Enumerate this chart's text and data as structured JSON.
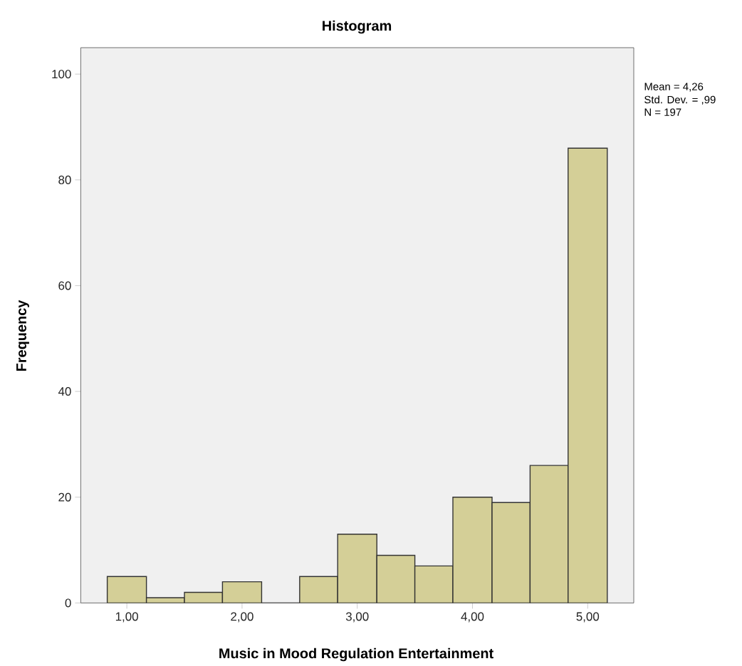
{
  "chart_data": {
    "type": "histogram",
    "title": "Histogram",
    "xlabel": "Music in Mood Regulation Entertainment",
    "ylabel": "Frequency",
    "bins": [
      0.83,
      1.17,
      1.5,
      1.83,
      2.17,
      2.5,
      2.83,
      3.17,
      3.5,
      3.83,
      4.17,
      4.5,
      4.83,
      5.17
    ],
    "values": [
      5,
      1,
      2,
      4,
      0,
      5,
      13,
      9,
      7,
      20,
      19,
      26,
      86
    ],
    "color": "#d4cf97",
    "xlim": [
      0.6,
      5.4
    ],
    "ylim": [
      0,
      105
    ],
    "xticks": [
      {
        "value": 1,
        "label": "1,00"
      },
      {
        "value": 2,
        "label": "2,00"
      },
      {
        "value": 3,
        "label": "3,00"
      },
      {
        "value": 4,
        "label": "4,00"
      },
      {
        "value": 5,
        "label": "5,00"
      }
    ],
    "yticks": [
      0,
      20,
      40,
      60,
      80,
      100
    ],
    "annotations": [
      "Mean = 4,26",
      "Std. Dev. = ,99",
      "N = 197"
    ]
  }
}
